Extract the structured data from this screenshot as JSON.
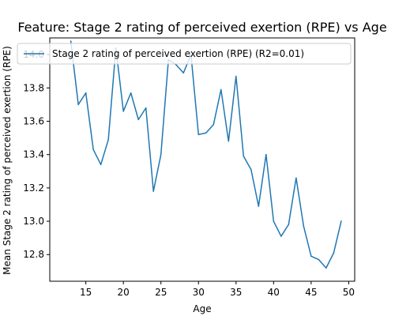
{
  "chart_data": {
    "type": "line",
    "title": "Feature: Stage 2 rating of perceived exertion (RPE) vs Age",
    "xlabel": "Age",
    "ylabel": "Mean Stage 2 rating of perceived exertion (RPE)",
    "xlim": [
      10.2,
      50.8
    ],
    "ylim": [
      12.64,
      14.1
    ],
    "xticks": [
      15,
      20,
      25,
      30,
      35,
      40,
      45,
      50
    ],
    "yticks": [
      12.8,
      13.0,
      13.2,
      13.4,
      13.6,
      13.8,
      14.0
    ],
    "xtick_labels": [
      "15",
      "20",
      "25",
      "30",
      "35",
      "40",
      "45",
      "50"
    ],
    "ytick_labels": [
      "12.8",
      "13.0",
      "13.2",
      "13.4",
      "13.6",
      "13.8",
      "14.0"
    ],
    "grid": false,
    "legend_position": "top",
    "series": [
      {
        "name": "Stage 2 rating of perceived exertion (RPE) (R2=0.01)",
        "color": "#1f77b4",
        "x": [
          13,
          14,
          15,
          16,
          17,
          18,
          19,
          20,
          21,
          22,
          23,
          24,
          25,
          26,
          27,
          28,
          29,
          30,
          31,
          32,
          33,
          34,
          35,
          36,
          37,
          38,
          39,
          40,
          41,
          42,
          43,
          44,
          45,
          46,
          47,
          48,
          49
        ],
        "y": [
          14.08,
          13.7,
          13.77,
          13.43,
          13.34,
          13.49,
          14.04,
          13.66,
          13.77,
          13.61,
          13.68,
          13.18,
          13.4,
          13.97,
          13.94,
          13.89,
          14.0,
          13.52,
          13.53,
          13.58,
          13.79,
          13.48,
          13.87,
          13.39,
          13.31,
          13.09,
          13.4,
          13.0,
          12.91,
          12.98,
          13.26,
          12.97,
          12.79,
          12.77,
          12.72,
          12.81,
          13.0
        ]
      }
    ]
  }
}
